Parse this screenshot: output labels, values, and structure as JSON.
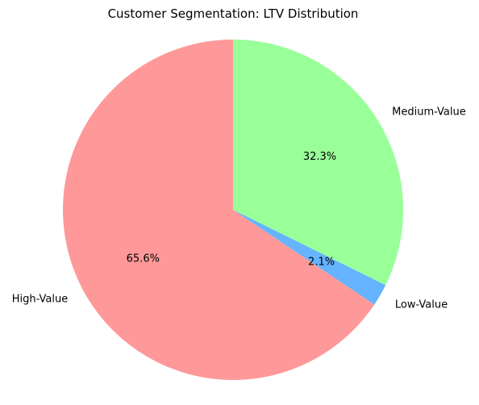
{
  "chart_data": {
    "type": "pie",
    "title": "Customer Segmentation: LTV Distribution",
    "categories": [
      "High-Value",
      "Low-Value",
      "Medium-Value"
    ],
    "values": [
      65.6,
      2.1,
      32.3
    ],
    "percent_labels": [
      "65.6%",
      "2.1%",
      "32.3%"
    ],
    "colors": [
      "#ff9999",
      "#66b3ff",
      "#99ff99"
    ],
    "start_angle_deg": 90,
    "direction": "counterclockwise",
    "legend": "none"
  }
}
